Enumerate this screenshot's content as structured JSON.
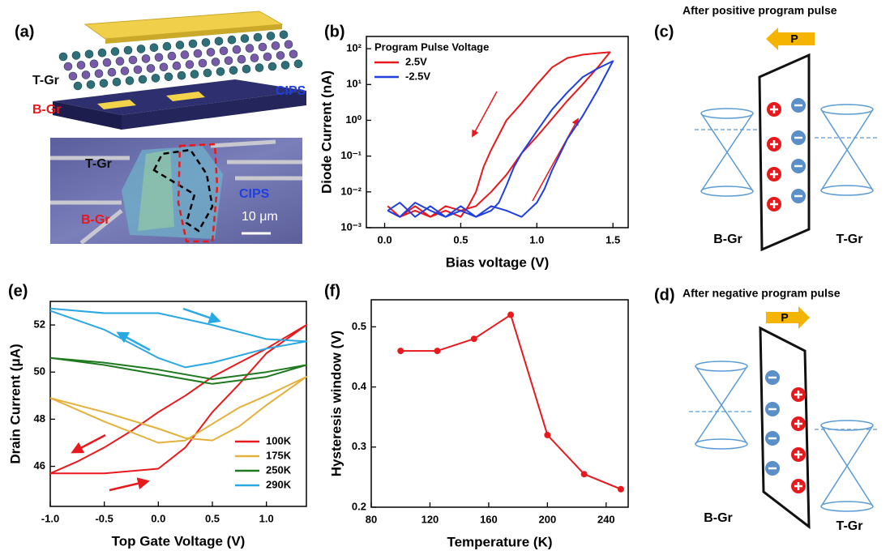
{
  "chart_data": [
    {
      "type": "line",
      "panel_label": "(b)",
      "x_label": "Bias voltage (V)",
      "y_label": "Diode Current (nA)",
      "log_y": true,
      "xlim": [
        -0.12,
        1.6
      ],
      "ylim": [
        0.001,
        220
      ],
      "xticks": [
        {
          "value": 0,
          "label": "0.0"
        },
        0.5,
        {
          "value": 1,
          "label": "1.0"
        },
        1.5
      ],
      "yticks": [
        {
          "value": 0.001,
          "label": "10⁻³"
        },
        {
          "value": 0.01,
          "label": "10⁻²"
        },
        {
          "value": 0.1,
          "label": "10⁻¹"
        },
        {
          "value": 1,
          "label": "10⁰"
        },
        {
          "value": 10,
          "label": "10¹"
        },
        {
          "value": 100,
          "label": "10²"
        }
      ],
      "legend": "upper left",
      "legend_title": "Program Pulse Voltage",
      "series": [
        {
          "name": "2.5V",
          "color": "#e8191c",
          "x": [
            0.02,
            0.1,
            0.2,
            0.3,
            0.4,
            0.5,
            0.6,
            0.7,
            0.8,
            0.9,
            1.0,
            1.1,
            1.2,
            1.3,
            1.4,
            1.48,
            1.4,
            1.3,
            1.2,
            1.1,
            1.0,
            0.9,
            0.8,
            0.7,
            0.65,
            0.6,
            0.55,
            0.5,
            0.4,
            0.3,
            0.2,
            0.1,
            0.02
          ],
          "values": [
            0.004,
            0.002,
            0.003,
            0.002,
            0.004,
            0.003,
            0.004,
            0.01,
            0.03,
            0.12,
            0.35,
            1.1,
            3.5,
            10,
            30,
            80,
            75,
            68,
            55,
            30,
            10,
            3,
            1,
            0.15,
            0.05,
            0.01,
            0.004,
            0.002,
            0.003,
            0.002,
            0.004,
            0.002,
            0.003
          ]
        },
        {
          "name": "-2.5V",
          "color": "#1f3fe0",
          "x": [
            0.02,
            0.1,
            0.2,
            0.3,
            0.4,
            0.5,
            0.6,
            0.7,
            0.8,
            0.9,
            1.0,
            1.05,
            1.1,
            1.2,
            1.3,
            1.4,
            1.5,
            1.4,
            1.3,
            1.2,
            1.1,
            1.0,
            0.9,
            0.85,
            0.8,
            0.75,
            0.7,
            0.6,
            0.5,
            0.4,
            0.3,
            0.2,
            0.1,
            0.02
          ],
          "values": [
            0.003,
            0.005,
            0.002,
            0.004,
            0.002,
            0.003,
            0.002,
            0.004,
            0.003,
            0.002,
            0.005,
            0.012,
            0.04,
            0.3,
            1.3,
            7,
            45,
            28,
            16,
            6,
            2,
            0.5,
            0.12,
            0.05,
            0.015,
            0.005,
            0.003,
            0.002,
            0.004,
            0.002,
            0.003,
            0.005,
            0.002,
            0.003
          ]
        }
      ]
    },
    {
      "type": "line",
      "panel_label": "(e)",
      "x_label": "Top Gate Voltage (V)",
      "y_label": "Drain Current (μA)",
      "xlim": [
        -1,
        1.37
      ],
      "ylim": [
        44.3,
        53
      ],
      "xticks": [
        {
          "value": -1,
          "label": "-1.0"
        },
        -0.5,
        {
          "value": 0,
          "label": "0.0"
        },
        0.5,
        {
          "value": 1,
          "label": "1.0"
        }
      ],
      "yticks": [
        46,
        48,
        50,
        52
      ],
      "legend": "lower right",
      "series": [
        {
          "name": "100K",
          "color": "#e8191c",
          "x": [
            -1,
            -0.75,
            -0.5,
            -0.25,
            0,
            0.25,
            0.5,
            0.75,
            1,
            1.25,
            1.37,
            1,
            0.75,
            0.5,
            0.25,
            0,
            -0.25,
            -0.5,
            -0.75,
            -1
          ],
          "values": [
            45.7,
            45.7,
            45.7,
            45.8,
            45.9,
            46.8,
            48.3,
            49.5,
            50.8,
            51.6,
            52,
            51,
            50.4,
            49.8,
            49,
            48.3,
            47.5,
            46.8,
            46.2,
            45.7
          ]
        },
        {
          "name": "175K",
          "color": "#e3b13c",
          "x": [
            -1,
            -0.5,
            0,
            0.25,
            0.5,
            0.75,
            1,
            1.37,
            1,
            0.75,
            0.5,
            0.25,
            0,
            -0.5,
            -1
          ],
          "values": [
            48.9,
            47.9,
            47,
            47.1,
            47.8,
            48.5,
            49,
            49.8,
            48.6,
            47.7,
            47.1,
            47.2,
            47.6,
            48.3,
            48.9
          ]
        },
        {
          "name": "250K",
          "color": "#1f7a1f",
          "x": [
            -1,
            -0.5,
            0,
            0.5,
            1,
            1.37,
            1,
            0.5,
            0,
            -0.5,
            -1
          ],
          "values": [
            50.6,
            50.3,
            49.9,
            49.5,
            49.8,
            50.3,
            50,
            49.7,
            50.1,
            50.4,
            50.6
          ]
        },
        {
          "name": "290K",
          "color": "#2aa8e2",
          "x": [
            -1,
            -0.5,
            0,
            0.5,
            1,
            1.37,
            1,
            0.5,
            0.25,
            0,
            -0.5,
            -1
          ],
          "values": [
            52.7,
            52.5,
            52.5,
            52,
            51.4,
            51.3,
            51,
            50.4,
            50.2,
            50.6,
            51.8,
            52.6
          ]
        }
      ]
    },
    {
      "type": "line",
      "markers": true,
      "panel_label": "(f)",
      "x_label": "Temperature (K)",
      "y_label": "Hysteresis window (V)",
      "xlim": [
        80,
        255
      ],
      "ylim": [
        0.2,
        0.545
      ],
      "xticks": [
        80,
        120,
        160,
        200,
        240
      ],
      "yticks": [
        0.2,
        0.3,
        0.4,
        0.5
      ],
      "color": "#e8191c",
      "x": [
        100,
        125,
        150,
        175,
        200,
        225,
        250
      ],
      "values": [
        0.46,
        0.46,
        0.48,
        0.52,
        0.32,
        0.255,
        0.23
      ]
    }
  ],
  "panel_a": {
    "label": "(a)",
    "schematic_labels": {
      "top": "T-Gr",
      "bottom": "B-Gr",
      "layer": "CIPS"
    },
    "photo_labels": {
      "top": "T-Gr",
      "layer": "CIPS",
      "bottom": "B-Gr",
      "scale": "10 μm"
    }
  },
  "panel_c": {
    "label": "(c)",
    "title": "After positive program pulse",
    "arrow": "P",
    "left": "B-Gr",
    "right": "T-Gr"
  },
  "panel_d": {
    "label": "(d)",
    "title": "After negative program pulse",
    "arrow": "P",
    "left": "B-Gr",
    "right": "T-Gr"
  }
}
